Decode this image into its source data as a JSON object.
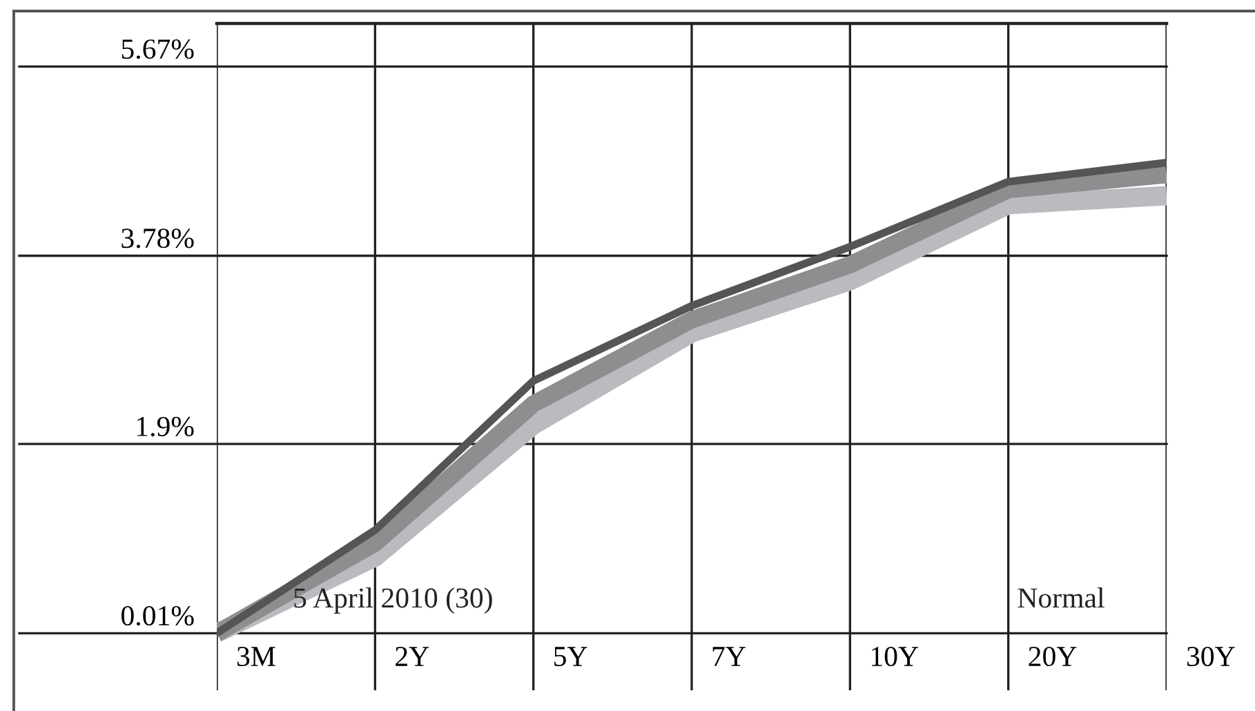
{
  "chart_data": {
    "type": "line",
    "categories": [
      "3M",
      "2Y",
      "5Y",
      "7Y",
      "10Y",
      "20Y",
      "30Y"
    ],
    "series": [
      {
        "color": "#bbbbbf",
        "values": [
          0.01,
          0.77,
          2.09,
          3.01,
          3.53,
          4.29,
          4.38
        ]
      },
      {
        "color": "#8e8e90",
        "values": [
          0.01,
          0.91,
          2.3,
          3.14,
          3.69,
          4.44,
          4.59
        ]
      },
      {
        "color": "#555555",
        "values": [
          0.01,
          1.04,
          2.53,
          3.28,
          3.87,
          4.52,
          4.71
        ]
      }
    ],
    "ylim": [
      -0.56,
      6.1
    ],
    "yticks": [
      {
        "value": 0.01,
        "label": "0.01%"
      },
      {
        "value": 1.9,
        "label": "1.9%"
      },
      {
        "value": 3.78,
        "label": "3.78%"
      },
      {
        "value": 5.67,
        "label": "5.67%"
      }
    ],
    "grid": true,
    "marker": "none",
    "line_style": "solid",
    "annotations": [
      "5 April 2010 (30)",
      "Normal"
    ]
  }
}
